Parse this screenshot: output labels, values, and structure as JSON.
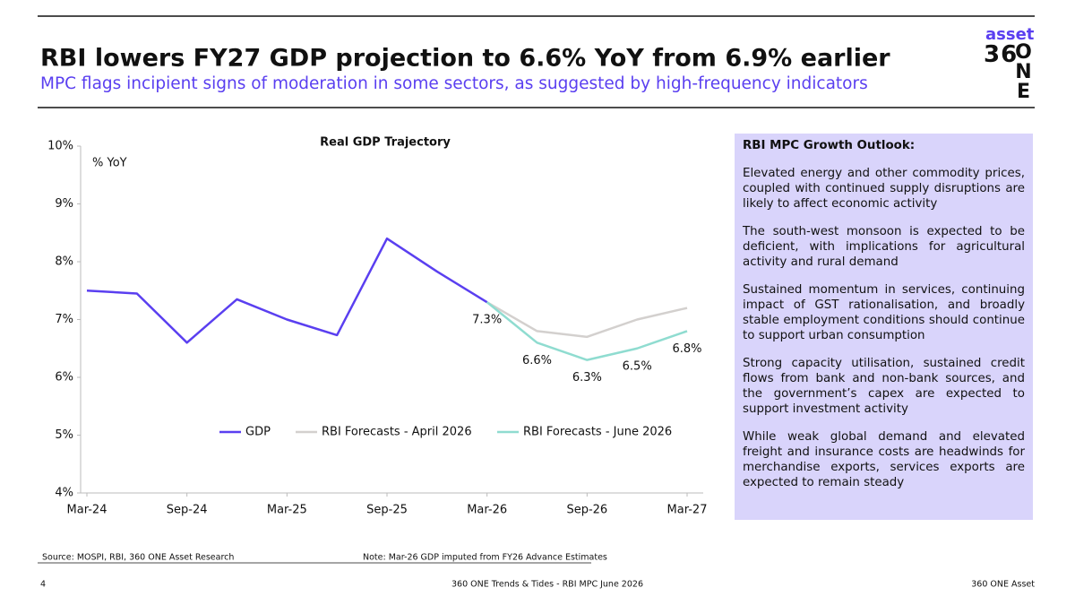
{
  "header": {
    "title": "RBI lowers FY27 GDP projection to 6.6% YoY from 6.9% earlier",
    "subtitle": "MPC flags incipient signs of moderation in some sectors, as suggested by high-frequency indicators"
  },
  "logo": {
    "top": "asset",
    "main": "36",
    "tail": "ONE"
  },
  "chart_data": {
    "type": "line",
    "title": "Real GDP Trajectory",
    "y_label": "% YoY",
    "categories": [
      "Mar-24",
      null,
      "Sep-24",
      null,
      "Mar-25",
      null,
      "Sep-25",
      null,
      "Mar-26",
      null,
      "Sep-26",
      null,
      "Mar-27"
    ],
    "series": [
      {
        "name": "GDP",
        "color": "#5a3ff0",
        "values": [
          7.5,
          7.45,
          6.6,
          7.35,
          7.0,
          6.73,
          8.4,
          7.83,
          7.3,
          null,
          null,
          null,
          null
        ],
        "value_labels": [
          null,
          null,
          null,
          null,
          null,
          null,
          null,
          null,
          "7.3%",
          null,
          null,
          null,
          null
        ]
      },
      {
        "name": "RBI Forecasts - April 2026",
        "color": "#d3d0ce",
        "values": [
          null,
          null,
          null,
          null,
          null,
          null,
          null,
          null,
          7.3,
          6.8,
          6.7,
          7.0,
          7.2
        ]
      },
      {
        "name": "RBI Forecasts - June 2026",
        "color": "#8fdcd0",
        "values": [
          null,
          null,
          null,
          null,
          null,
          null,
          null,
          null,
          7.3,
          6.6,
          6.3,
          6.5,
          6.8
        ],
        "value_labels": [
          null,
          null,
          null,
          null,
          null,
          null,
          null,
          null,
          null,
          "6.6%",
          "6.3%",
          "6.5%",
          "6.8%"
        ]
      }
    ],
    "ylim": [
      4,
      10
    ],
    "yticks": [
      {
        "value": 4,
        "label": "4%"
      },
      {
        "value": 5,
        "label": "5%"
      },
      {
        "value": 6,
        "label": "6%"
      },
      {
        "value": 7,
        "label": "7%"
      },
      {
        "value": 8,
        "label": "8%"
      },
      {
        "value": 9,
        "label": "9%"
      },
      {
        "value": 10,
        "label": "10%"
      }
    ],
    "grid": false
  },
  "panel": {
    "heading": "RBI MPC Growth Outlook:",
    "paragraphs": [
      "Elevated energy and other commodity prices, coupled with continued supply disruptions are likely to affect economic activity",
      "The south-west monsoon is expected to be deficient, with implications for agricultural activity and rural demand",
      "Sustained momentum in services, continuing impact of GST rationalisation, and broadly stable employment conditions should continue to support urban consumption",
      "Strong capacity utilisation, sustained credit flows from bank and non-bank sources, and the government’s capex are expected to support investment activity",
      "While weak global demand and elevated freight and insurance costs are headwinds for merchandise exports, services exports are expected to remain steady"
    ]
  },
  "footer": {
    "source": "Source: MOSPI, RBI, 360 ONE Asset Research",
    "note": "Note: Mar-26 GDP imputed from FY26 Advance Estimates",
    "page": "4",
    "center": "360 ONE Trends & Tides - RBI MPC June 2026",
    "right": "360 ONE Asset"
  }
}
